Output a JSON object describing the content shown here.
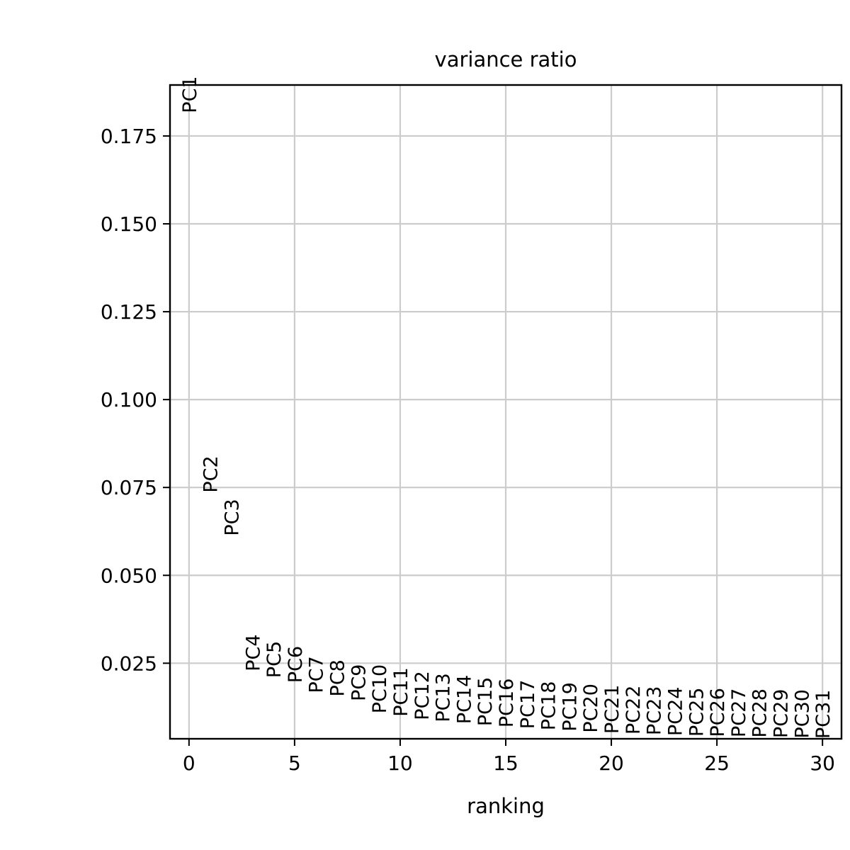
{
  "chart_data": {
    "type": "scatter",
    "title": "variance ratio",
    "xlabel": "ranking",
    "ylabel": "",
    "xlim": [
      -0.9,
      30.9
    ],
    "ylim": [
      0.0035,
      0.1895
    ],
    "xticks": [
      0,
      5,
      10,
      15,
      20,
      25,
      30
    ],
    "xtick_labels": [
      "0",
      "5",
      "10",
      "15",
      "20",
      "25",
      "30"
    ],
    "yticks": [
      0.025,
      0.05,
      0.075,
      0.1,
      0.125,
      0.15,
      0.175
    ],
    "ytick_labels": [
      "0.025",
      "0.050",
      "0.075",
      "0.100",
      "0.125",
      "0.150",
      "0.175"
    ],
    "grid": true,
    "points": [
      {
        "label": "PC1",
        "x": 0,
        "y": 0.1815
      },
      {
        "label": "PC2",
        "x": 1,
        "y": 0.0735
      },
      {
        "label": "PC3",
        "x": 2,
        "y": 0.0612
      },
      {
        "label": "PC4",
        "x": 3,
        "y": 0.0227
      },
      {
        "label": "PC5",
        "x": 4,
        "y": 0.0208
      },
      {
        "label": "PC6",
        "x": 5,
        "y": 0.0194
      },
      {
        "label": "PC7",
        "x": 6,
        "y": 0.0165
      },
      {
        "label": "PC8",
        "x": 7,
        "y": 0.0155
      },
      {
        "label": "PC9",
        "x": 8,
        "y": 0.0142
      },
      {
        "label": "PC10",
        "x": 9,
        "y": 0.0107
      },
      {
        "label": "PC11",
        "x": 10,
        "y": 0.0098
      },
      {
        "label": "PC12",
        "x": 11,
        "y": 0.0088
      },
      {
        "label": "PC13",
        "x": 12,
        "y": 0.0082
      },
      {
        "label": "PC14",
        "x": 13,
        "y": 0.0077
      },
      {
        "label": "PC15",
        "x": 14,
        "y": 0.0071
      },
      {
        "label": "PC16",
        "x": 15,
        "y": 0.0067
      },
      {
        "label": "PC17",
        "x": 16,
        "y": 0.0063
      },
      {
        "label": "PC18",
        "x": 17,
        "y": 0.0059
      },
      {
        "label": "PC19",
        "x": 18,
        "y": 0.0056
      },
      {
        "label": "PC20",
        "x": 19,
        "y": 0.0052
      },
      {
        "label": "PC21",
        "x": 20,
        "y": 0.0049
      },
      {
        "label": "PC22",
        "x": 21,
        "y": 0.0047
      },
      {
        "label": "PC23",
        "x": 22,
        "y": 0.0045
      },
      {
        "label": "PC24",
        "x": 23,
        "y": 0.0043
      },
      {
        "label": "PC25",
        "x": 24,
        "y": 0.0041
      },
      {
        "label": "PC26",
        "x": 25,
        "y": 0.004
      },
      {
        "label": "PC27",
        "x": 26,
        "y": 0.0039
      },
      {
        "label": "PC28",
        "x": 27,
        "y": 0.0038
      },
      {
        "label": "PC29",
        "x": 28,
        "y": 0.0037
      },
      {
        "label": "PC30",
        "x": 29,
        "y": 0.0036
      },
      {
        "label": "PC31",
        "x": 30,
        "y": 0.0035
      }
    ]
  }
}
